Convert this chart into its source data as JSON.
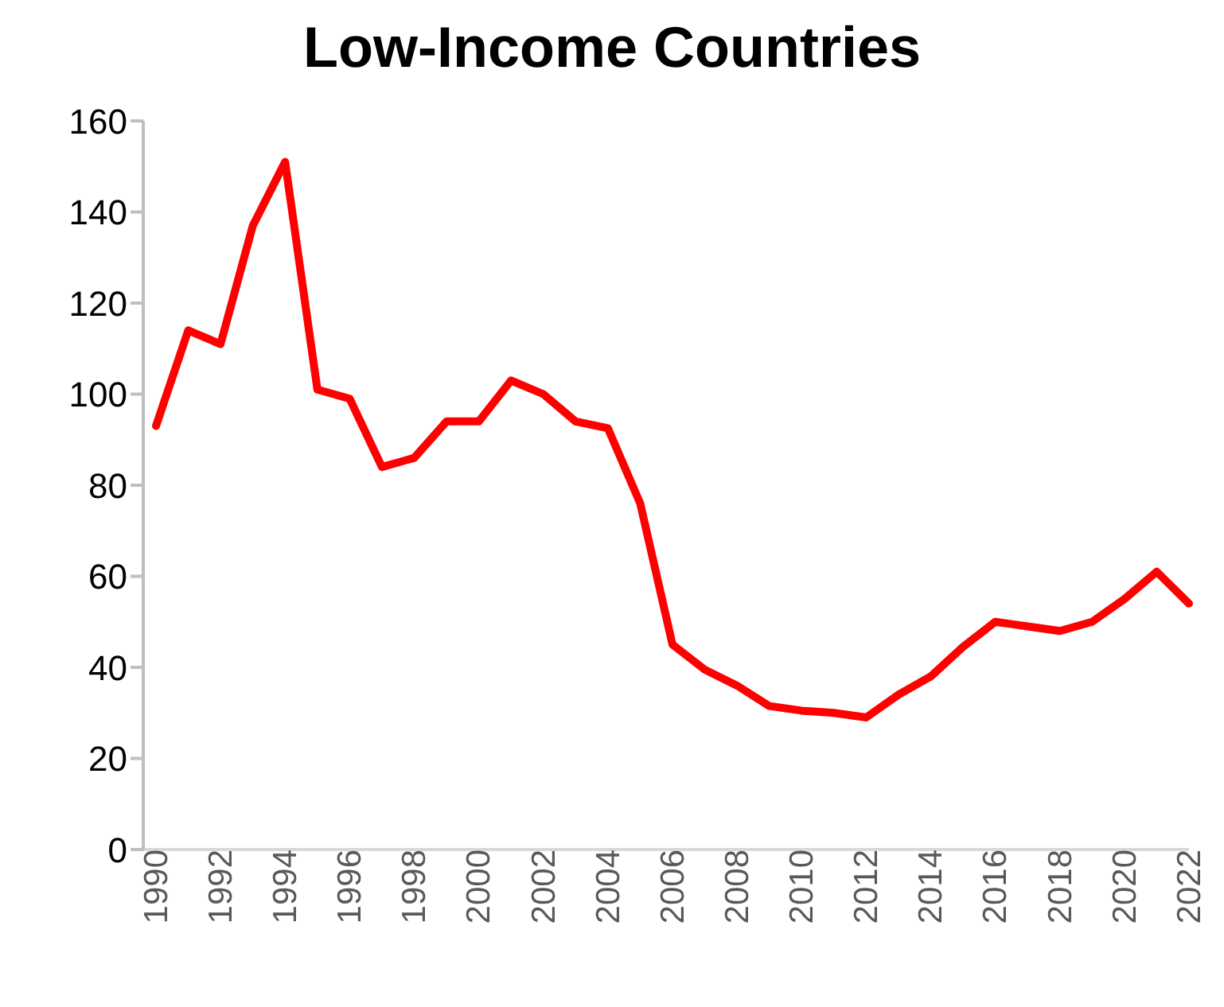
{
  "chart_data": {
    "type": "line",
    "title": "Low-Income Countries",
    "categories": [
      "1990",
      null,
      "1992",
      null,
      "1994",
      null,
      "1996",
      null,
      "1998",
      null,
      "2000",
      null,
      "2002",
      null,
      "2004",
      null,
      "2006",
      null,
      "2008",
      null,
      "2010",
      null,
      "2012",
      null,
      "2014",
      null,
      "2016",
      null,
      "2018",
      null,
      "2020",
      null,
      "2022"
    ],
    "series": [
      {
        "color": "#ff0000",
        "values": [
          93,
          114,
          111,
          137,
          151,
          101,
          99,
          84,
          86,
          94,
          94,
          103,
          100,
          94,
          92.5,
          76,
          45,
          39.5,
          36,
          31.5,
          30.5,
          30,
          29,
          34,
          38,
          44.5,
          50,
          49,
          48,
          50,
          55,
          61,
          54
        ]
      }
    ],
    "ylim": [
      0,
      160
    ],
    "yticks": [
      0,
      20,
      40,
      60,
      80,
      100,
      120,
      140,
      160
    ],
    "grid": false,
    "legend": false,
    "marker": "none",
    "line_style": "solid"
  }
}
